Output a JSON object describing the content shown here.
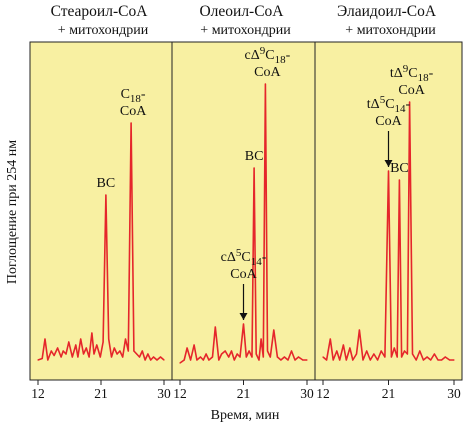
{
  "chart_data": [
    {
      "type": "line",
      "title": "Стеароил-CoA",
      "subtitle": "+ митохондрии",
      "xlabel": "Время, мин",
      "ylabel": "Поглощение при 254 нм",
      "xlim": [
        12,
        30
      ],
      "xticks": [
        "12",
        "21",
        "30"
      ],
      "ylim": [
        0,
        1
      ],
      "grid": false,
      "peaks": [
        {
          "x": 21.7,
          "y": 0.57,
          "label": [
            "BC"
          ]
        },
        {
          "x": 25.3,
          "y": 0.81,
          "label": [
            "C18-",
            "CoA"
          ]
        }
      ],
      "series": [
        {
          "x": [
            12.0,
            12.6,
            13.0,
            13.4,
            13.9,
            14.3,
            14.8,
            15.3,
            15.6,
            16.0,
            16.4,
            16.9,
            17.4,
            17.7,
            18.1,
            18.5,
            18.9,
            19.3,
            19.7,
            20.0,
            20.4,
            20.9,
            21.3,
            21.7,
            22.1,
            22.5,
            22.9,
            23.3,
            23.7,
            24.1,
            24.5,
            24.9,
            25.3,
            25.7,
            26.1,
            26.5,
            26.9,
            27.3,
            27.7,
            28.1,
            28.5,
            29.0,
            29.5,
            30.0
          ],
          "values": [
            0.02,
            0.025,
            0.09,
            0.02,
            0.05,
            0.035,
            0.06,
            0.03,
            0.05,
            0.04,
            0.08,
            0.03,
            0.07,
            0.03,
            0.09,
            0.04,
            0.06,
            0.03,
            0.11,
            0.04,
            0.07,
            0.03,
            0.08,
            0.57,
            0.09,
            0.03,
            0.06,
            0.04,
            0.05,
            0.03,
            0.09,
            0.05,
            0.81,
            0.05,
            0.04,
            0.03,
            0.05,
            0.02,
            0.04,
            0.02,
            0.03,
            0.02,
            0.03,
            0.02
          ]
        }
      ]
    },
    {
      "type": "line",
      "title": "Олеоил-CoA",
      "subtitle": "+ митохондрии",
      "xlim": [
        12,
        30
      ],
      "xticks": [
        "12",
        "21",
        "30"
      ],
      "ylim": [
        0,
        1
      ],
      "peaks": [
        {
          "x": 21.0,
          "y": 0.14,
          "label": [
            "cΔ5C14-",
            "CoA"
          ],
          "arrow": true
        },
        {
          "x": 22.5,
          "y": 0.66,
          "label": [
            "BC"
          ]
        },
        {
          "x": 24.1,
          "y": 0.94,
          "label": [
            "cΔ9C18-",
            "CoA"
          ]
        }
      ],
      "series": [
        {
          "x": [
            12.0,
            12.6,
            13.0,
            13.5,
            14.0,
            14.4,
            14.9,
            15.3,
            15.7,
            16.1,
            16.6,
            17.0,
            17.5,
            17.9,
            18.4,
            18.9,
            19.3,
            19.7,
            20.1,
            20.5,
            21.0,
            21.4,
            21.8,
            22.2,
            22.5,
            22.8,
            23.2,
            23.5,
            23.8,
            24.1,
            24.4,
            24.8,
            25.3,
            25.8,
            26.3,
            26.8,
            27.3,
            27.8,
            28.3,
            28.8,
            29.4,
            30.0
          ],
          "values": [
            0.01,
            0.02,
            0.06,
            0.02,
            0.07,
            0.02,
            0.03,
            0.02,
            0.04,
            0.02,
            0.03,
            0.13,
            0.02,
            0.04,
            0.05,
            0.03,
            0.05,
            0.02,
            0.04,
            0.03,
            0.14,
            0.03,
            0.05,
            0.03,
            0.66,
            0.04,
            0.02,
            0.09,
            0.03,
            0.94,
            0.05,
            0.03,
            0.12,
            0.03,
            0.02,
            0.03,
            0.02,
            0.05,
            0.02,
            0.03,
            0.02,
            0.02
          ]
        }
      ]
    },
    {
      "type": "line",
      "title": "Элаидоил-CoA",
      "subtitle": "+ митохондрии",
      "xlim": [
        12,
        30
      ],
      "xticks": [
        "12",
        "21",
        "30"
      ],
      "ylim": [
        0,
        1
      ],
      "peaks": [
        {
          "x": 21.0,
          "y": 0.65,
          "label": [
            "tΔ5C14-",
            "CoA"
          ],
          "arrow": true
        },
        {
          "x": 22.5,
          "y": 0.62,
          "label": [
            "BC"
          ]
        },
        {
          "x": 23.9,
          "y": 0.88,
          "label": [
            "tΔ9C18-",
            "CoA"
          ]
        }
      ],
      "series": [
        {
          "x": [
            12.0,
            12.5,
            13.0,
            13.4,
            13.9,
            14.3,
            14.8,
            15.2,
            15.7,
            16.1,
            16.6,
            17.0,
            17.5,
            18.0,
            18.5,
            19.0,
            19.5,
            20.0,
            20.5,
            21.0,
            21.4,
            21.8,
            22.2,
            22.5,
            22.8,
            23.2,
            23.6,
            23.9,
            24.3,
            24.8,
            25.3,
            25.8,
            26.3,
            26.8,
            27.3,
            27.8,
            28.3,
            28.8,
            29.4,
            30.0
          ],
          "values": [
            0.03,
            0.02,
            0.09,
            0.02,
            0.05,
            0.02,
            0.07,
            0.02,
            0.06,
            0.02,
            0.04,
            0.12,
            0.02,
            0.05,
            0.02,
            0.04,
            0.02,
            0.05,
            0.03,
            0.65,
            0.03,
            0.06,
            0.03,
            0.62,
            0.03,
            0.05,
            0.04,
            0.88,
            0.04,
            0.02,
            0.05,
            0.02,
            0.03,
            0.02,
            0.04,
            0.02,
            0.02,
            0.03,
            0.02,
            0.02
          ]
        }
      ]
    }
  ],
  "colors": {
    "background": "#f8f0a2",
    "trace": "#e5262b"
  }
}
